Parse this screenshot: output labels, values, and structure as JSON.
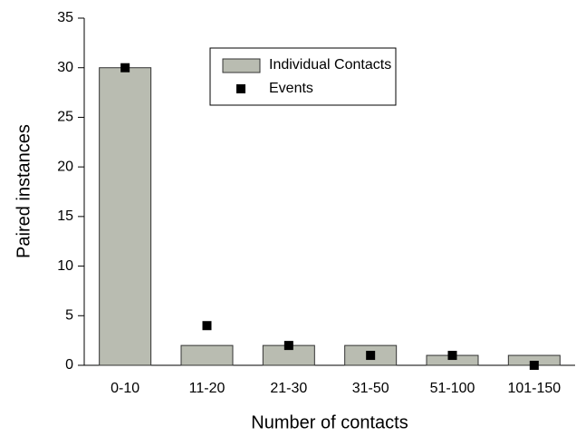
{
  "chart_data": {
    "type": "bar",
    "xlabel": "Number of contacts",
    "ylabel": "Paired instances",
    "categories": [
      "0-10",
      "11-20",
      "21-30",
      "31-50",
      "51-100",
      "101-150"
    ],
    "series": [
      {
        "name": "Individual Contacts",
        "type": "bar",
        "color": "#b9bcb1",
        "values": [
          30,
          2,
          2,
          2,
          1,
          1
        ]
      },
      {
        "name": "Events",
        "type": "scatter",
        "color": "#000000",
        "values": [
          30,
          4,
          2,
          1,
          1,
          0
        ]
      }
    ],
    "ylim": [
      0,
      35
    ],
    "yticks": [
      0,
      5,
      10,
      15,
      20,
      25,
      30,
      35
    ],
    "legend": "top-center"
  }
}
